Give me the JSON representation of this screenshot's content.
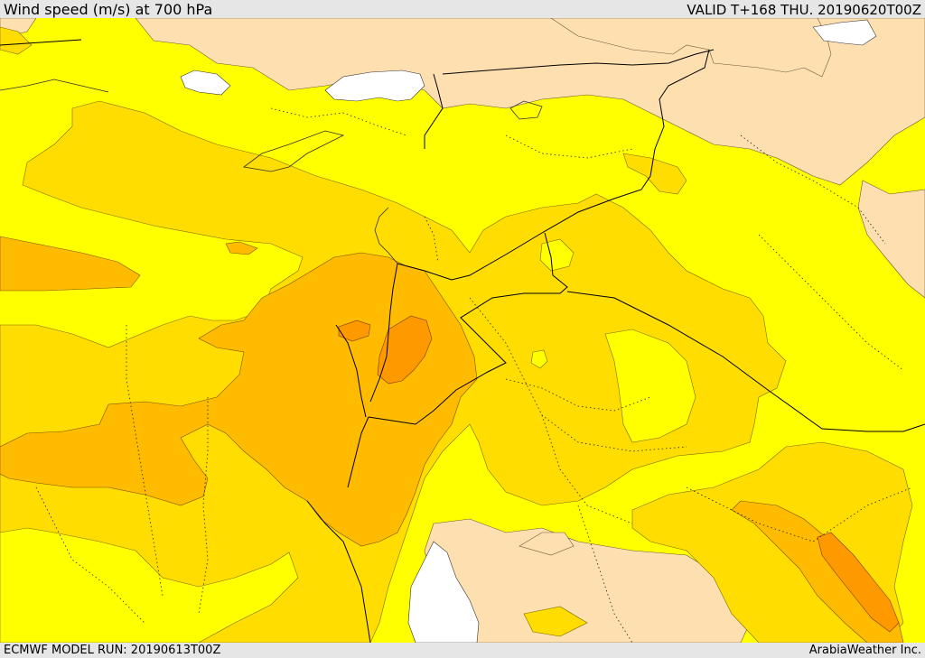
{
  "header": {
    "title": "Wind speed (m/s) at 700 hPa",
    "valid": "VALID T+168 THU. 20190620T00Z"
  },
  "footer": {
    "model_run": "ECMWF MODEL RUN: 20190613T00Z",
    "credit": "ArabiaWeather Inc."
  },
  "map": {
    "variable": "Wind speed",
    "units": "m/s",
    "level": "700 hPa",
    "colors": {
      "land": "#fedfaf",
      "lowest_band": "#ffff00",
      "band_2": "#ffdd00",
      "band_3": "#ffbb00",
      "band_4": "#ff9900",
      "sea": "#ffffff"
    }
  }
}
